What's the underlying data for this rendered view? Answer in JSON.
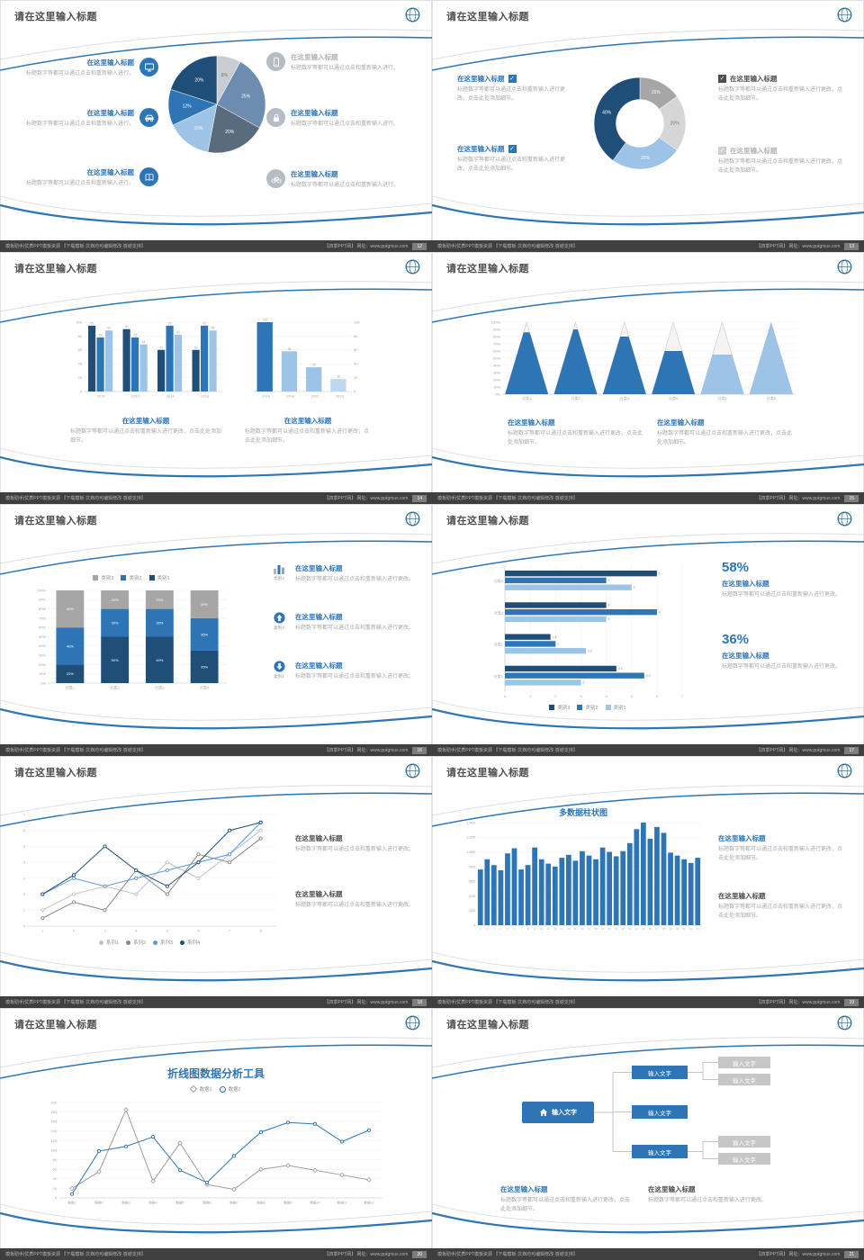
{
  "common": {
    "slide_title": "请在这里输入标题",
    "item_title": "在这里输入标题",
    "body_short": "标题数字等都可以通过点击和重新输入进行。",
    "body_medium": "标题数字等都可以通过点击和重新输入进行更改。",
    "body_long": "标题数字等都可以通过点击和重新输入进行更改，点击此处添加细节。",
    "check_glyph": "✓",
    "footer_left": "模板助手|优质PPT模板资源 【下载模板·文档均可编辑修改·感谢支持】",
    "footer_right": "【四季PPT网】 网址：www.pptgmus.com"
  },
  "slides": {
    "s12": {
      "page": "12"
    },
    "s13": {
      "page": "13"
    },
    "s14": {
      "page": "14"
    },
    "s15": {
      "page": "15"
    },
    "s16": {
      "page": "16",
      "icon_labels": [
        "类别3",
        "类别2",
        "类别1"
      ]
    },
    "s17": {
      "page": "17",
      "pct1": "58%",
      "pct2": "36%"
    },
    "s18": {
      "page": "18"
    },
    "s19": {
      "page": "19"
    },
    "s20": {
      "page": "20"
    },
    "s21": {
      "page": "21",
      "node_label": "输入文字"
    }
  },
  "chart_data": [
    {
      "target": "ch12",
      "type": "pie",
      "values": [
        8,
        25,
        20,
        15,
        12,
        20
      ],
      "labels": [
        "8%",
        "25%",
        "20%",
        "15%",
        "12%",
        "20%"
      ],
      "colors": [
        "#c9cdd2",
        "#6d8db0",
        "#5a6b7e",
        "#9dc3e6",
        "#2e75b6",
        "#1f4e79"
      ],
      "label_colors": [
        "#777777",
        "#ffffff",
        "#ffffff",
        "#ffffff",
        "#ffffff",
        "#ffffff"
      ]
    },
    {
      "target": "ch13",
      "type": "donut",
      "inner": 0.52,
      "values": [
        15,
        20,
        25,
        40
      ],
      "labels": [
        "15%",
        "20%",
        "25%",
        "40%"
      ],
      "colors": [
        "#a6a6a6",
        "#d6d6d6",
        "#9dc3e6",
        "#1f4e79"
      ],
      "label_colors": [
        "#ffffff",
        "#777777",
        "#ffffff",
        "#ffffff"
      ]
    },
    {
      "target": "ch14a",
      "type": "bars",
      "ymax": 100,
      "bar_labels": true,
      "categories": [
        "2010",
        "2012",
        "2014",
        "2016"
      ],
      "ylabels": [
        "0",
        "20",
        "40",
        "60",
        "80",
        "100"
      ],
      "series": [
        {
          "name": "series1",
          "color": "#1f4e79",
          "values": [
            95,
            90,
            60,
            60
          ]
        },
        {
          "name": "series2",
          "color": "#2e75b6",
          "values": [
            78,
            78,
            95,
            95
          ]
        },
        {
          "name": "series3",
          "color": "#9dc3e6",
          "values": [
            88,
            68,
            82,
            88
          ]
        }
      ]
    },
    {
      "target": "ch14b",
      "type": "bars",
      "ymax": 100,
      "bar_labels": true,
      "side": "right",
      "categories": [
        "2016",
        "2014",
        "2012",
        "2010"
      ],
      "ylabels": [
        "0",
        "20",
        "40",
        "60",
        "80",
        "100"
      ],
      "series": [
        {
          "name": "series1",
          "color": "#2e75b6",
          "colors": [
            "#2e75b6",
            "#9dc3e6",
            "#9dc3e6",
            "#bdd7ee"
          ],
          "values": [
            100,
            58,
            35,
            18
          ]
        }
      ]
    },
    {
      "target": "ch15",
      "type": "pyramid",
      "ylabels": [
        "0%",
        "10%",
        "20%",
        "30%",
        "40%",
        "50%",
        "60%",
        "70%",
        "80%",
        "90%",
        "100%"
      ],
      "items": [
        {
          "label": "分类1",
          "value": 86,
          "color": "#2e75b6"
        },
        {
          "label": "分类2",
          "value": 90,
          "color": "#2e75b6"
        },
        {
          "label": "分类3",
          "value": 80,
          "color": "#2e75b6"
        },
        {
          "label": "分类4",
          "value": 60,
          "color": "#2e75b6"
        },
        {
          "label": "分类5",
          "value": 55,
          "color": "#9dc3e6"
        },
        {
          "label": "分类6",
          "value": 100,
          "color": "#9dc3e6"
        }
      ]
    },
    {
      "target": "ch16",
      "type": "stack",
      "ymax": 100,
      "categories": [
        "分类1",
        "分类2",
        "分类3",
        "分类4"
      ],
      "ylabels": [
        "0%",
        "10%",
        "20%",
        "30%",
        "40%",
        "50%",
        "60%",
        "70%",
        "80%",
        "90%",
        "100%"
      ],
      "series": [
        {
          "name": "类别1",
          "color": "#1f4e79",
          "values": [
            20,
            50,
            50,
            35
          ]
        },
        {
          "name": "类别2",
          "color": "#2e75b6",
          "values": [
            40,
            30,
            30,
            35
          ]
        },
        {
          "name": "类别3",
          "color": "#a6a6a6",
          "values": [
            40,
            20,
            20,
            30
          ]
        }
      ],
      "legend": [
        {
          "label": "类别3",
          "color": "#a6a6a6"
        },
        {
          "label": "类别2",
          "color": "#2e75b6"
        },
        {
          "label": "类别1",
          "color": "#1f4e79"
        }
      ]
    },
    {
      "target": "ch17",
      "type": "hbars",
      "xmax": 7,
      "categories": [
        "分类4",
        "分类3",
        "分类2",
        "分类1"
      ],
      "series": [
        {
          "name": "类别3",
          "color": "#1f4e79",
          "values": [
            6,
            4,
            1.8,
            4.4
          ]
        },
        {
          "name": "类别2",
          "color": "#2e75b6",
          "values": [
            4,
            6,
            2,
            5.5
          ]
        },
        {
          "name": "类别1",
          "color": "#9dc3e6",
          "values": [
            5,
            4,
            3.2,
            3
          ]
        }
      ],
      "legend": [
        {
          "label": "类别3",
          "color": "#1f4e79"
        },
        {
          "label": "类别2",
          "color": "#2e75b6"
        },
        {
          "label": "类别1",
          "color": "#9dc3e6"
        }
      ]
    },
    {
      "target": "ch18",
      "type": "lines",
      "ymax": 7,
      "ml": 10,
      "x": [
        "1",
        "2",
        "3",
        "4",
        "5",
        "6",
        "7",
        "8"
      ],
      "ylabels": [
        "0",
        "1",
        "2",
        "3",
        "4",
        "5",
        "6",
        "7"
      ],
      "series": [
        {
          "name": "系列1",
          "color": "#c3c3c3",
          "values": [
            1,
            2,
            2.5,
            2,
            4,
            3,
            4.5,
            6
          ]
        },
        {
          "name": "系列2",
          "color": "#8a8a8a",
          "values": [
            0.5,
            1.5,
            1,
            3.5,
            2,
            4.5,
            4,
            5.5
          ]
        },
        {
          "name": "系列3",
          "color": "#5b9bd5",
          "values": [
            2,
            3,
            2.5,
            3,
            3.5,
            4,
            4.5,
            6.5
          ]
        },
        {
          "name": "系列4",
          "color": "#1f4e79",
          "values": [
            2,
            3.2,
            5,
            3.5,
            2.5,
            4,
            6,
            6.5
          ]
        }
      ],
      "legend": [
        {
          "label": "系列1",
          "color": "#c3c3c3",
          "shape": "dot"
        },
        {
          "label": "系列2",
          "color": "#8a8a8a",
          "shape": "dot"
        },
        {
          "label": "系列3",
          "color": "#5b9bd5",
          "shape": "dot"
        },
        {
          "label": "系列4",
          "color": "#1f4e79",
          "shape": "dot"
        }
      ]
    },
    {
      "target": "ch19",
      "type": "cols",
      "ymax": 1400,
      "color": "#2e75b6",
      "title": "多数据柱状图",
      "ylabels": [
        "0",
        "200",
        "400",
        "600",
        "800",
        "1,000",
        "1,200",
        "1,400"
      ],
      "x_labels": [
        "1",
        "2",
        "3",
        "4",
        "5",
        "6",
        "7",
        "8",
        "9",
        "10",
        "11",
        "12",
        "13",
        "14",
        "15",
        "16",
        "17",
        "18",
        "19",
        "20",
        "21",
        "22",
        "23",
        "24",
        "25",
        "26",
        "27",
        "28",
        "29",
        "30",
        "31",
        "32",
        "33"
      ],
      "values": [
        760,
        900,
        820,
        750,
        980,
        1050,
        760,
        820,
        1060,
        900,
        840,
        800,
        920,
        960,
        880,
        1010,
        950,
        900,
        1060,
        1000,
        940,
        1010,
        1120,
        1310,
        1400,
        1180,
        1340,
        1260,
        990,
        950,
        900,
        850,
        920
      ]
    },
    {
      "target": "ch20",
      "type": "lines",
      "ymax": 200,
      "ml": 15,
      "xfs": 3.6,
      "title": "折线图数据分析工具",
      "x": [
        "数据1",
        "数据2",
        "数据3",
        "数据4",
        "数据5",
        "数据6",
        "数据7",
        "数据8",
        "数据9",
        "数据10",
        "数据11",
        "数据12"
      ],
      "ylabels": [
        "0",
        "20",
        "40",
        "60",
        "80",
        "100",
        "120",
        "140",
        "160",
        "180",
        "200"
      ],
      "series": [
        {
          "name": "数据1",
          "color": "#9e9e9e",
          "marker": "diamond",
          "values": [
            20,
            55,
            185,
            35,
            115,
            28,
            18,
            60,
            68,
            58,
            48,
            38
          ]
        },
        {
          "name": "数据2",
          "color": "#2e75b6",
          "marker": "circle",
          "values": [
            8,
            98,
            108,
            128,
            58,
            32,
            88,
            138,
            158,
            155,
            118,
            142
          ]
        }
      ],
      "legend": [
        {
          "label": "数据1",
          "color": "#9e9e9e",
          "shape": "diamond"
        },
        {
          "label": "数据2",
          "color": "#2e75b6",
          "shape": "circle"
        }
      ]
    }
  ]
}
